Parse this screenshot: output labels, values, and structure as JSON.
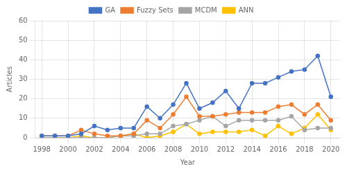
{
  "chart_data": {
    "type": "line",
    "x": [
      1998,
      1999,
      2000,
      2001,
      2002,
      2003,
      2004,
      2005,
      2006,
      2007,
      2008,
      2009,
      2010,
      2011,
      2012,
      2013,
      2014,
      2015,
      2016,
      2017,
      2018,
      2019,
      2020
    ],
    "series": [
      {
        "name": "GA",
        "color": "#4472C4",
        "marker": "circle",
        "values": [
          1,
          1,
          1,
          2,
          6,
          4,
          5,
          5,
          16,
          10,
          17,
          28,
          15,
          18,
          24,
          15,
          28,
          28,
          31,
          34,
          35,
          42,
          21
        ]
      },
      {
        "name": "Fuzzy Sets",
        "color": "#ED7D31",
        "marker": "circle",
        "values": [
          1,
          1,
          1,
          4,
          2,
          1,
          1,
          2,
          9,
          5,
          12,
          21,
          11,
          11,
          12,
          13,
          13,
          13,
          16,
          17,
          12,
          17,
          9
        ]
      },
      {
        "name": "MCDM",
        "color": "#A5A5A5",
        "marker": "circle",
        "values": [
          0,
          0,
          0,
          0,
          0,
          0,
          1,
          1,
          2,
          2,
          6,
          7,
          9,
          11,
          6,
          9,
          9,
          9,
          9,
          11,
          4,
          5,
          5
        ]
      },
      {
        "name": "ANN",
        "color": "#FFC000",
        "marker": "circle",
        "values": [
          0,
          0,
          0,
          1,
          0,
          0,
          1,
          2,
          0,
          1,
          3,
          7,
          2,
          3,
          3,
          3,
          4,
          1,
          6,
          2,
          5,
          12,
          4
        ]
      }
    ],
    "xlabel": "Year",
    "ylabel": "Articles",
    "xlim": [
      1997.5,
      2020.7
    ],
    "xticks": [
      1998,
      2000,
      2002,
      2004,
      2006,
      2008,
      2010,
      2012,
      2014,
      2016,
      2018,
      2020
    ],
    "ylim": [
      0,
      60
    ],
    "yticks": [
      0,
      10,
      20,
      30,
      40,
      50,
      60
    ],
    "grid": true,
    "legend": "top"
  }
}
